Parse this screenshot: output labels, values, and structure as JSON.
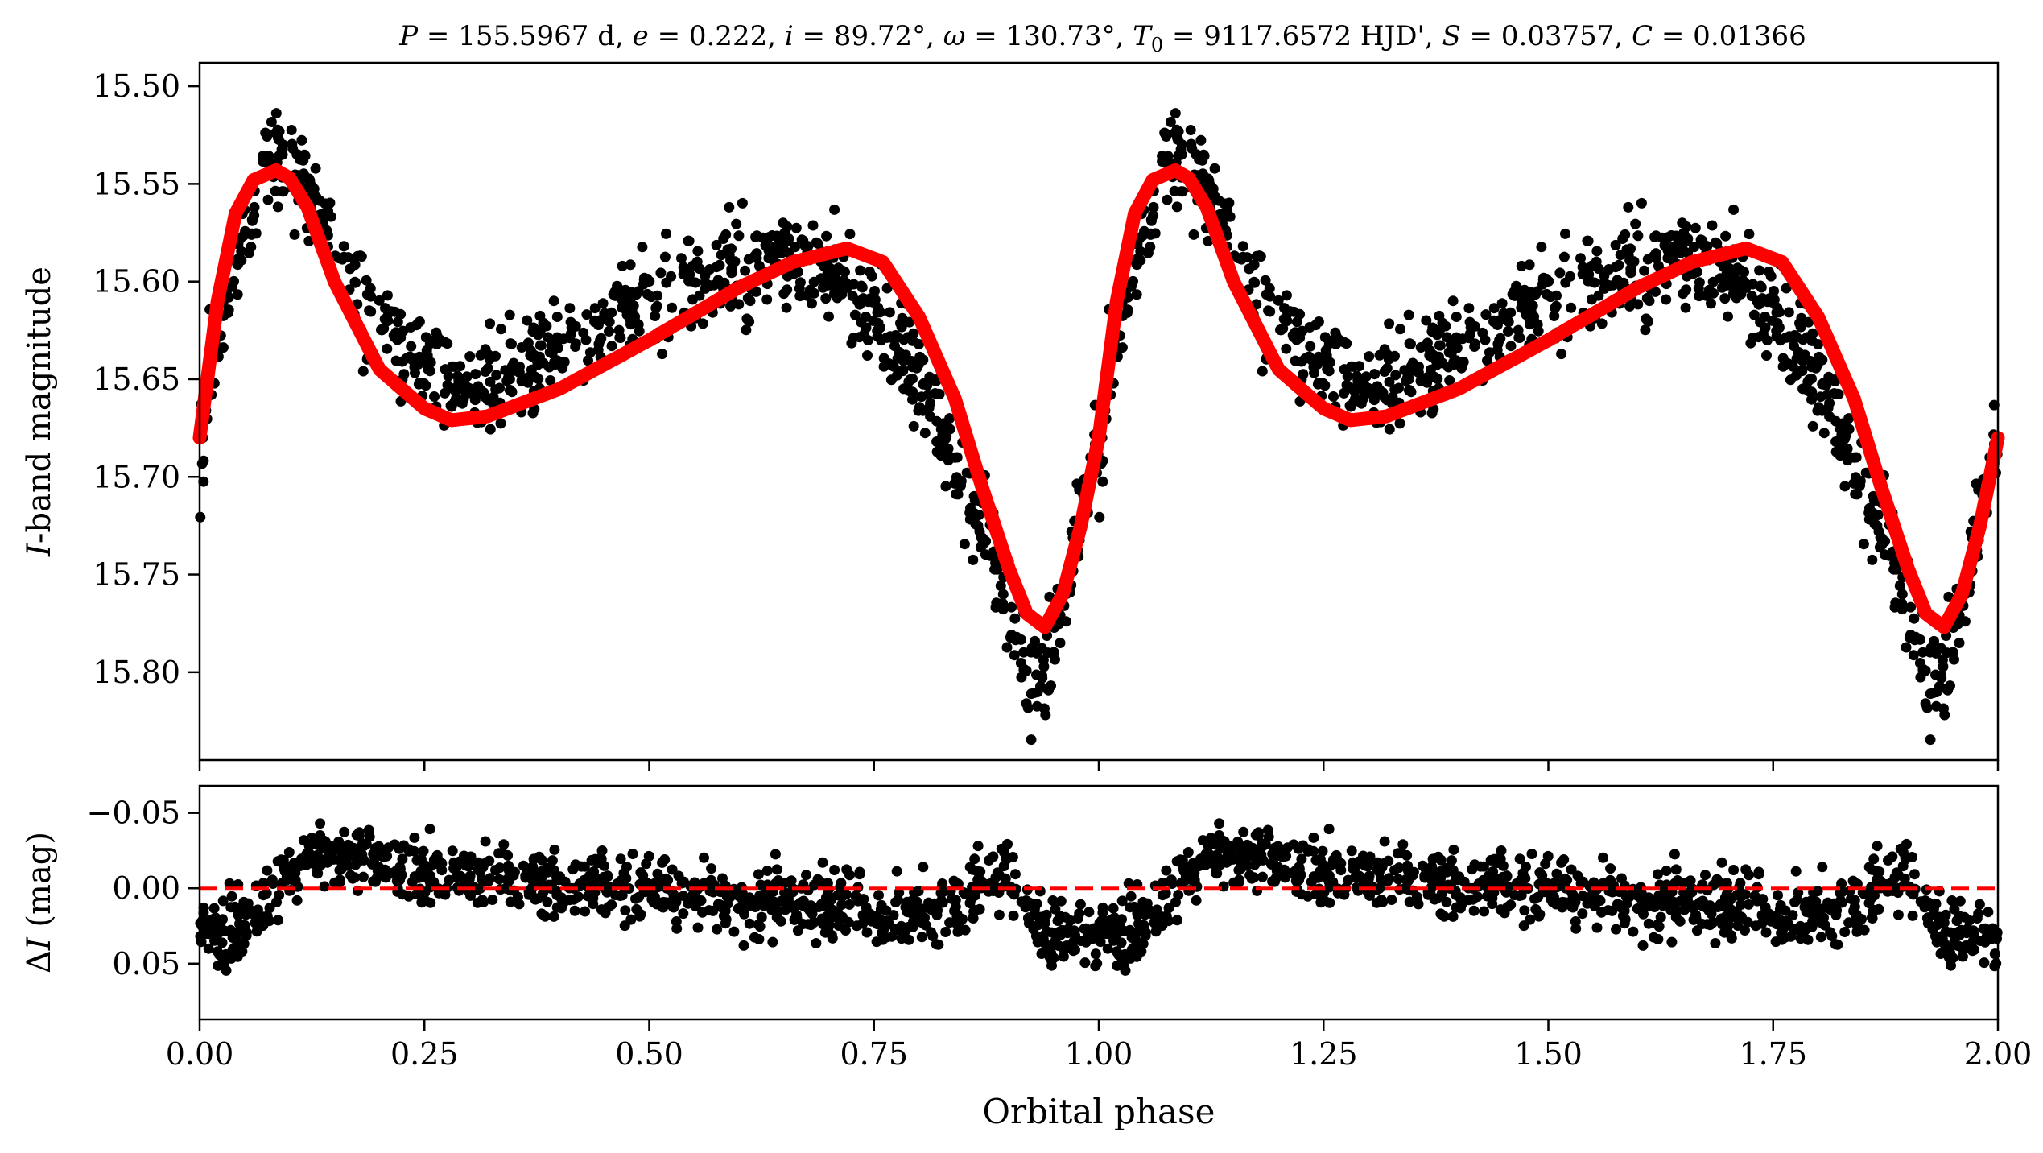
{
  "chart_data": [
    {
      "type": "scatter",
      "panel": "light-curve",
      "title": "P = 155.5967 d, e = 0.222, i = 89.72°, ω = 130.73°, T0 = 9117.6572 HJD', S = 0.03757, C = 0.01366",
      "title_parts": {
        "P_sym": "P",
        "P_val": " = 155.5967 d, ",
        "e_sym": "e",
        "e_val": " = 0.222, ",
        "i_sym": "i",
        "i_val": " = 89.72°, ",
        "w_sym": "ω",
        "w_val": " = 130.73°, ",
        "T_sym": "T",
        "T_sub": "0",
        "T_val": " = 9117.6572 HJD', ",
        "S_sym": "S",
        "S_val": " = 0.03757, ",
        "C_sym": "C",
        "C_val": " = 0.01366"
      },
      "xlabel": "",
      "ylabel_italic": "I",
      "ylabel_rest": "-band magnitude",
      "xlim": [
        0.0,
        2.0
      ],
      "ylim": [
        15.845,
        15.488
      ],
      "y_inverted": true,
      "yticks": [
        "15.50",
        "15.55",
        "15.60",
        "15.65",
        "15.70",
        "15.75",
        "15.80"
      ],
      "ytick_values": [
        15.5,
        15.55,
        15.6,
        15.65,
        15.7,
        15.75,
        15.8
      ],
      "xtick_values": [
        0.0,
        0.25,
        0.5,
        0.75,
        1.0,
        1.25,
        1.5,
        1.75,
        2.0
      ],
      "series": [
        {
          "name": "observations",
          "marker": "dot",
          "color": "#000000",
          "note": "approx. 900 points per cycle, repeated for phase 1–2",
          "envelope": {
            "phase": [
              0.0,
              0.02,
              0.04,
              0.06,
              0.085,
              0.11,
              0.14,
              0.17,
              0.2,
              0.25,
              0.3,
              0.35,
              0.4,
              0.45,
              0.5,
              0.55,
              0.6,
              0.65,
              0.7,
              0.75,
              0.8,
              0.85,
              0.88,
              0.9,
              0.92,
              0.94,
              0.96,
              0.98,
              1.0
            ],
            "mag": [
              15.69,
              15.63,
              15.59,
              15.56,
              15.535,
              15.54,
              15.57,
              15.6,
              15.62,
              15.64,
              15.655,
              15.645,
              15.63,
              15.62,
              15.61,
              15.6,
              15.595,
              15.59,
              15.595,
              15.615,
              15.65,
              15.7,
              15.74,
              15.77,
              15.8,
              15.8,
              15.77,
              15.72,
              15.68
            ]
          },
          "scatter_mag": 0.012
        },
        {
          "name": "model fit",
          "type": "line",
          "color": "#ff0000",
          "phase": [
            0.0,
            0.02,
            0.04,
            0.06,
            0.085,
            0.1,
            0.12,
            0.15,
            0.2,
            0.25,
            0.28,
            0.32,
            0.4,
            0.5,
            0.6,
            0.66,
            0.72,
            0.76,
            0.8,
            0.84,
            0.87,
            0.9,
            0.92,
            0.94,
            0.96,
            0.98,
            1.0
          ],
          "mag": [
            15.68,
            15.61,
            15.565,
            15.548,
            15.543,
            15.547,
            15.562,
            15.6,
            15.645,
            15.665,
            15.671,
            15.669,
            15.655,
            15.63,
            15.603,
            15.59,
            15.583,
            15.59,
            15.618,
            15.66,
            15.705,
            15.747,
            15.77,
            15.777,
            15.76,
            15.725,
            15.68
          ]
        }
      ]
    },
    {
      "type": "scatter",
      "panel": "residuals",
      "xlabel": "Orbital phase",
      "ylabel_delta": "Δ",
      "ylabel_italic": "I",
      "ylabel_rest": " (mag)",
      "xlim": [
        0.0,
        2.0
      ],
      "ylim": [
        0.087,
        -0.068
      ],
      "y_inverted": true,
      "yticks": [
        "−0.05",
        "0.00",
        "0.05"
      ],
      "ytick_values": [
        -0.05,
        0.0,
        0.05
      ],
      "xticks": [
        "0.00",
        "0.25",
        "0.50",
        "0.75",
        "1.00",
        "1.25",
        "1.50",
        "1.75",
        "2.00"
      ],
      "xtick_values": [
        0.0,
        0.25,
        0.5,
        0.75,
        1.0,
        1.25,
        1.5,
        1.75,
        2.0
      ],
      "series": [
        {
          "name": "residuals",
          "marker": "dot",
          "color": "#000000",
          "trend": {
            "phase": [
              0.0,
              0.03,
              0.06,
              0.08,
              0.1,
              0.12,
              0.15,
              0.2,
              0.3,
              0.4,
              0.5,
              0.6,
              0.7,
              0.75,
              0.8,
              0.84,
              0.86,
              0.88,
              0.9,
              0.92,
              0.94,
              0.96,
              0.98,
              1.0
            ],
            "resid": [
              0.025,
              0.035,
              0.02,
              0.0,
              -0.012,
              -0.02,
              -0.022,
              -0.015,
              -0.01,
              -0.005,
              0.002,
              0.008,
              0.012,
              0.015,
              0.015,
              0.012,
              0.005,
              -0.01,
              -0.012,
              0.005,
              0.035,
              0.03,
              0.028,
              0.028
            ]
          },
          "scatter_resid": 0.011
        },
        {
          "name": "zero line",
          "type": "hline",
          "value": 0.0,
          "color": "#ff0000",
          "style": "dashed"
        }
      ]
    }
  ]
}
